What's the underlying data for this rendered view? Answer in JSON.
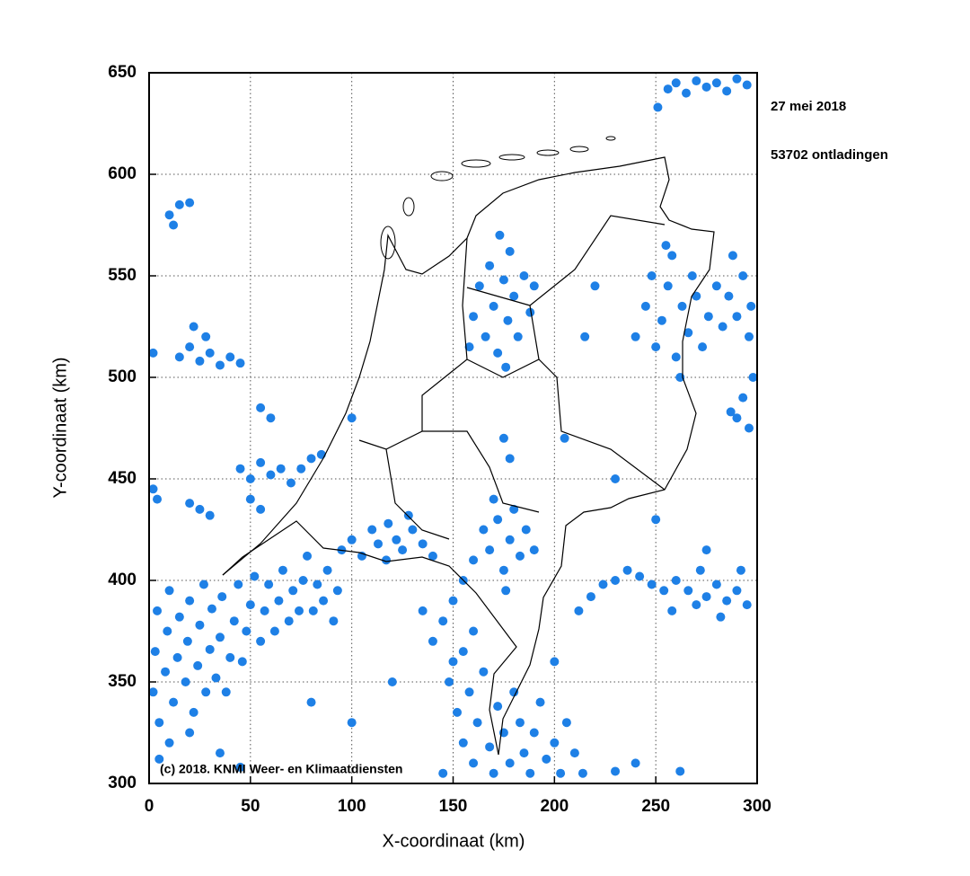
{
  "chart_data": {
    "type": "scatter",
    "annotations": [
      "27 mei 2018",
      "53702 ontladingen",
      "(c) 2018. KNMI Weer- en Klimaatdiensten"
    ],
    "xlabel": "X-coordinaat (km)",
    "ylabel": "Y-coordinaat (km)",
    "color": "#1e80e6",
    "xlim": [
      0,
      300
    ],
    "ylim": [
      300,
      650
    ],
    "xticks": [
      0,
      50,
      100,
      150,
      200,
      250,
      300
    ],
    "yticks": [
      300,
      350,
      400,
      450,
      500,
      550,
      600,
      650
    ],
    "grid": true,
    "x": [
      2,
      3,
      4,
      5,
      8,
      9,
      10,
      12,
      14,
      15,
      18,
      19,
      20,
      22,
      24,
      25,
      27,
      28,
      30,
      31,
      33,
      35,
      36,
      38,
      40,
      42,
      44,
      46,
      48,
      50,
      52,
      55,
      57,
      59,
      62,
      64,
      66,
      69,
      71,
      74,
      76,
      78,
      81,
      83,
      86,
      88,
      91,
      93,
      10,
      20,
      35,
      45,
      5,
      95,
      100,
      105,
      110,
      113,
      118,
      122,
      125,
      130,
      135,
      140,
      128,
      117,
      160,
      165,
      168,
      172,
      175,
      178,
      180,
      183,
      186,
      190,
      170,
      176,
      155,
      150,
      145,
      140,
      135,
      148,
      152,
      155,
      158,
      160,
      162,
      165,
      168,
      170,
      172,
      175,
      178,
      180,
      183,
      185,
      188,
      190,
      193,
      196,
      200,
      203,
      206,
      210,
      214,
      155,
      160,
      150,
      145,
      212,
      218,
      224,
      230,
      236,
      242,
      248,
      254,
      260,
      266,
      270,
      275,
      280,
      285,
      290,
      295,
      272,
      258,
      282,
      292,
      160,
      163,
      166,
      168,
      170,
      172,
      175,
      177,
      178,
      180,
      182,
      185,
      188,
      190,
      158,
      173,
      176,
      240,
      245,
      248,
      250,
      253,
      256,
      258,
      260,
      263,
      266,
      268,
      270,
      273,
      276,
      280,
      283,
      286,
      290,
      293,
      296,
      262,
      255,
      288,
      297,
      290,
      293,
      296,
      298,
      287,
      256,
      260,
      265,
      270,
      275,
      280,
      285,
      290,
      295,
      251,
      10,
      12,
      15,
      20,
      15,
      20,
      25,
      30,
      35,
      40,
      45,
      28,
      22,
      45,
      50,
      55,
      60,
      65,
      70,
      75,
      80,
      85,
      50,
      55,
      25,
      20,
      30,
      2,
      4,
      55,
      60,
      2,
      220,
      215,
      205,
      230,
      250,
      275,
      240,
      262,
      230,
      100,
      80,
      120,
      200,
      175,
      178,
      100
    ],
    "y": [
      345,
      365,
      385,
      330,
      355,
      375,
      395,
      340,
      362,
      382,
      350,
      370,
      390,
      335,
      358,
      378,
      398,
      345,
      366,
      386,
      352,
      372,
      392,
      345,
      362,
      380,
      398,
      360,
      375,
      388,
      402,
      370,
      385,
      398,
      375,
      390,
      405,
      380,
      395,
      385,
      400,
      412,
      385,
      398,
      390,
      405,
      380,
      395,
      320,
      325,
      315,
      308,
      312,
      415,
      420,
      412,
      425,
      418,
      428,
      420,
      415,
      425,
      418,
      412,
      432,
      410,
      410,
      425,
      415,
      430,
      405,
      420,
      435,
      412,
      425,
      415,
      440,
      395,
      400,
      390,
      380,
      370,
      385,
      350,
      335,
      320,
      345,
      310,
      330,
      355,
      318,
      305,
      338,
      325,
      310,
      345,
      330,
      315,
      305,
      325,
      340,
      312,
      320,
      305,
      330,
      315,
      305,
      365,
      375,
      360,
      305,
      385,
      392,
      398,
      400,
      405,
      402,
      398,
      395,
      400,
      395,
      388,
      392,
      398,
      390,
      395,
      388,
      405,
      385,
      382,
      405,
      530,
      545,
      520,
      555,
      535,
      512,
      548,
      528,
      562,
      540,
      520,
      550,
      532,
      545,
      515,
      570,
      505,
      520,
      535,
      550,
      515,
      528,
      545,
      560,
      510,
      535,
      522,
      550,
      540,
      515,
      530,
      545,
      525,
      540,
      530,
      550,
      520,
      500,
      565,
      560,
      535,
      480,
      490,
      475,
      500,
      483,
      642,
      645,
      640,
      646,
      643,
      645,
      641,
      647,
      644,
      633,
      580,
      575,
      585,
      586,
      510,
      515,
      508,
      512,
      506,
      510,
      507,
      520,
      525,
      455,
      450,
      458,
      452,
      455,
      448,
      455,
      460,
      462,
      440,
      435,
      435,
      438,
      432,
      445,
      440,
      485,
      480,
      512,
      545,
      520,
      470,
      450,
      430,
      415,
      310,
      306,
      306,
      330,
      340,
      350,
      360,
      470,
      460,
      480
    ]
  }
}
